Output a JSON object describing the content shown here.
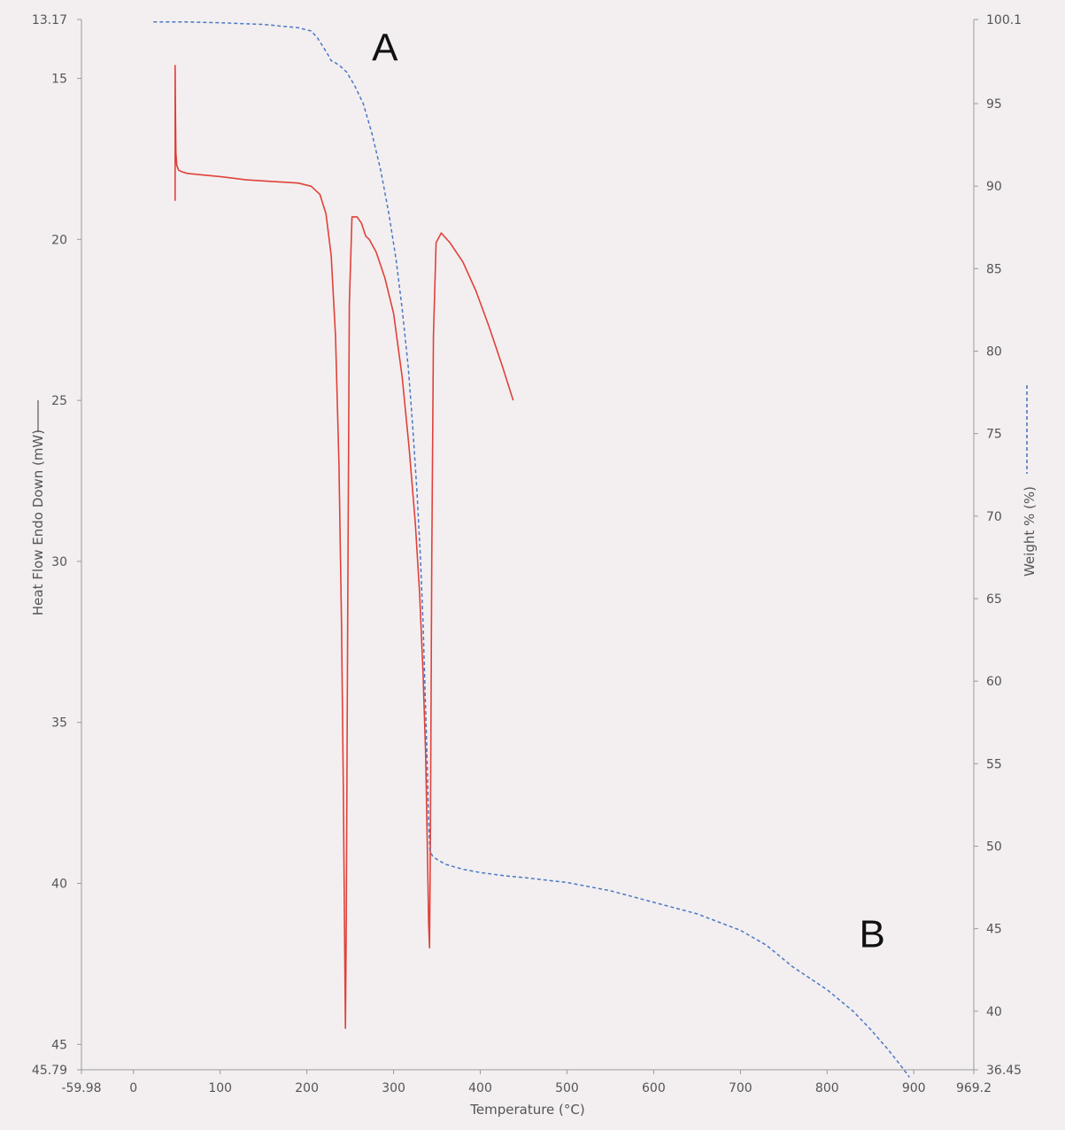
{
  "chart_data": {
    "type": "line",
    "title": "",
    "xlabel": "Temperature (°C)",
    "ylabel_left": "Heat Flow Endo Down (mW)",
    "ylabel_right": "Weight % (%)",
    "xlim": [
      -59.98,
      969.2
    ],
    "ylim_left": [
      13.17,
      45.79
    ],
    "ylim_left_inverted": true,
    "ylim_right": [
      36.45,
      100.1
    ],
    "x_ticks": [
      "-59.98",
      "0",
      "100",
      "200",
      "300",
      "400",
      "500",
      "600",
      "700",
      "800",
      "900",
      "969.2"
    ],
    "y_left_ticks": [
      "13.17",
      "15",
      "20",
      "25",
      "30",
      "35",
      "40",
      "45",
      "45.79"
    ],
    "y_right_ticks": [
      "100.1",
      "95",
      "90",
      "85",
      "80",
      "75",
      "70",
      "65",
      "60",
      "55",
      "50",
      "45",
      "40",
      "36.45"
    ],
    "x_tick_values": [
      -59.98,
      0,
      100,
      200,
      300,
      400,
      500,
      600,
      700,
      800,
      900,
      969.2
    ],
    "y_left_tick_values": [
      13.17,
      15,
      20,
      25,
      30,
      35,
      40,
      45,
      45.79
    ],
    "y_right_tick_values": [
      100.1,
      95,
      90,
      85,
      80,
      75,
      70,
      65,
      60,
      55,
      50,
      45,
      40,
      36.45
    ],
    "annotations": [
      {
        "text": "A",
        "x": 290,
        "y_right": 98.4
      },
      {
        "text": "B",
        "x": 852,
        "y_right": 44.7
      }
    ],
    "grid": false,
    "legend": "none",
    "series": [
      {
        "axis": "left",
        "color": "#e0413a",
        "style": "solid",
        "x": [
          48,
          48,
          48.5,
          49,
          50,
          52,
          56,
          62,
          80,
          100,
          130,
          160,
          190,
          205,
          215,
          222,
          228,
          233,
          237,
          240,
          242,
          243.5,
          244.5,
          245.5,
          247,
          249,
          252,
          258,
          263,
          268,
          272,
          280,
          290,
          300,
          310,
          318,
          325,
          330,
          334,
          337,
          339,
          340.5,
          341.5,
          342.5,
          344,
          346,
          349,
          355,
          365,
          380,
          395,
          410,
          425,
          438
        ],
        "y": [
          18.8,
          14.6,
          16.0,
          17.3,
          17.7,
          17.85,
          17.9,
          17.95,
          18.0,
          18.05,
          18.15,
          18.2,
          18.25,
          18.35,
          18.6,
          19.2,
          20.5,
          23.0,
          27.0,
          32.0,
          37.0,
          41.5,
          44.5,
          41.0,
          32.0,
          22.0,
          19.3,
          19.3,
          19.5,
          19.9,
          20.0,
          20.4,
          21.2,
          22.3,
          24.3,
          26.5,
          28.8,
          31.0,
          33.5,
          36.0,
          39.0,
          41.3,
          42.0,
          38.5,
          30.0,
          23.0,
          20.1,
          19.8,
          20.1,
          20.7,
          21.6,
          22.7,
          23.9,
          25.0
        ]
      },
      {
        "axis": "right",
        "color": "#4a78c4",
        "style": "dashed",
        "x": [
          23,
          60,
          100,
          150,
          190,
          205,
          212,
          218,
          224,
          228,
          232,
          238,
          246,
          255,
          265,
          275,
          285,
          295,
          303,
          310,
          317,
          322,
          327,
          331,
          334,
          336,
          338,
          339.5,
          340.5,
          342,
          345,
          350,
          360,
          380,
          400,
          430,
          450,
          500,
          550,
          600,
          650,
          700,
          730,
          760,
          800,
          830,
          850,
          870,
          885,
          895
        ],
        "y": [
          99.95,
          99.95,
          99.9,
          99.8,
          99.6,
          99.4,
          99.0,
          98.5,
          98.0,
          97.6,
          97.5,
          97.3,
          96.9,
          96.1,
          95.0,
          93.2,
          91.0,
          88.2,
          85.5,
          82.5,
          79.0,
          75.5,
          71.5,
          67.5,
          63.5,
          60.0,
          56.5,
          53.5,
          51.5,
          49.7,
          49.4,
          49.2,
          48.9,
          48.6,
          48.4,
          48.2,
          48.1,
          47.8,
          47.3,
          46.6,
          45.9,
          44.9,
          44.0,
          42.7,
          41.3,
          40.0,
          38.9,
          37.7,
          36.7,
          36.0
        ]
      }
    ]
  }
}
